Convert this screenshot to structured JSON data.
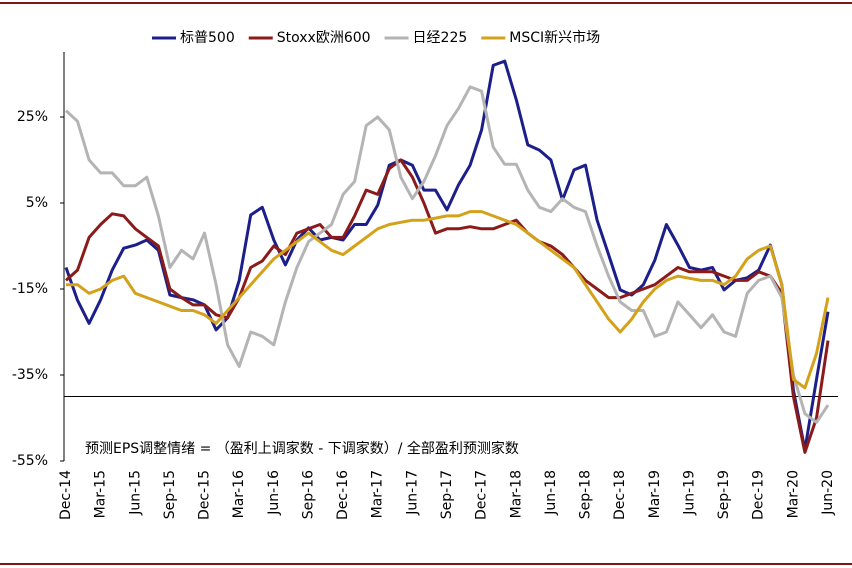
{
  "chart_data": {
    "type": "line",
    "categories": [
      "Dec-14",
      null,
      null,
      "Mar-15",
      null,
      null,
      "Jun-15",
      null,
      null,
      "Sep-15",
      null,
      null,
      "Dec-15",
      null,
      null,
      "Mar-16",
      null,
      null,
      "Jun-16",
      null,
      null,
      "Sep-16",
      null,
      null,
      "Dec-16",
      null,
      null,
      "Mar-17",
      null,
      null,
      "Jun-17",
      null,
      null,
      "Sep-17",
      null,
      null,
      "Dec-17",
      null,
      null,
      "Mar-18",
      null,
      null,
      "Jun-18",
      null,
      null,
      "Sep-18",
      null,
      null,
      "Dec-18",
      null,
      null,
      "Mar-19",
      null,
      null,
      "Jun-19",
      null,
      null,
      "Sep-19",
      null,
      null,
      "Dec-19",
      null,
      null,
      "Mar-20",
      null,
      null,
      "Jun-20"
    ],
    "series": [
      {
        "name": "标普500",
        "color": "#1c1f8a",
        "values": [
          -10,
          -17.6,
          -23,
          -17.5,
          -10.6,
          -5.5,
          -4.8,
          -3.6,
          -6,
          -16.4,
          -17,
          -17.5,
          -18.7,
          -24.5,
          -21.7,
          -13,
          2.2,
          4,
          -3.6,
          -9.4,
          -3.6,
          -0.8,
          -3.6,
          -3,
          -3.6,
          0,
          0,
          4.5,
          13.8,
          15,
          13.8,
          8,
          8,
          3.4,
          9.2,
          13.8,
          22,
          37,
          38,
          29,
          18.5,
          17.3,
          15,
          5.7,
          12.7,
          13.8,
          1,
          -7,
          -15.2,
          -16.4,
          -14,
          -8.3,
          0,
          -4.8,
          -10,
          -10.6,
          -10,
          -15.2,
          -13,
          -12.4,
          -10.6,
          -4.8,
          -14,
          -38.5,
          -52.4,
          -36,
          -20.3
        ]
      },
      {
        "name": "Stoxx欧洲600",
        "color": "#8b1a1a",
        "values": [
          -13,
          -10.6,
          -3,
          0,
          2.5,
          2,
          -1,
          -3,
          -5,
          -15,
          -17,
          -18.7,
          -18.7,
          -21,
          -21.7,
          -17,
          -10,
          -8.5,
          -5,
          -7,
          -2,
          -1,
          0,
          -3,
          -3,
          2,
          8,
          7,
          13,
          15,
          11,
          5,
          -2,
          -1,
          -1,
          -0.5,
          -1,
          -1,
          0,
          1,
          -2,
          -4,
          -5,
          -7,
          -10,
          -13,
          -15,
          -17,
          -17,
          -16,
          -15,
          -14,
          -12,
          -10,
          -11,
          -11,
          -11,
          -12,
          -13,
          -13,
          -11,
          -12,
          -16,
          -40,
          -53,
          -45,
          -27
        ]
      },
      {
        "name": "日经225",
        "color": "#b4b4b4",
        "values": [
          26.5,
          24,
          15,
          12,
          12,
          9,
          9,
          11,
          2,
          -10,
          -6,
          -8,
          -2,
          -14,
          -28,
          -33,
          -25,
          -26,
          -28,
          -18,
          -10,
          -4,
          -2,
          0,
          7,
          10,
          23,
          25,
          22,
          11,
          6,
          10,
          16,
          23,
          27,
          32,
          31,
          18,
          14,
          14,
          8,
          4,
          3,
          6,
          4,
          3,
          -5,
          -12,
          -18,
          -20,
          -20,
          -26,
          -25,
          -18,
          -21,
          -24,
          -21,
          -25,
          -26,
          -16,
          -13,
          -12,
          -17,
          -35,
          -44,
          -46,
          -42
        ]
      },
      {
        "name": "MSCI新兴市场",
        "color": "#d4a21a",
        "values": [
          -14,
          -14,
          -16,
          -15,
          -13,
          -12,
          -16,
          -17,
          -18,
          -19,
          -20,
          -20,
          -21,
          -23,
          -20,
          -17,
          -14,
          -11,
          -8,
          -6,
          -4,
          -2,
          -4,
          -6,
          -7,
          -5,
          -3,
          -1,
          0,
          0.5,
          1,
          1,
          1.5,
          2,
          2,
          3,
          3,
          2,
          1,
          0,
          -2,
          -4,
          -6,
          -8,
          -10,
          -14,
          -18,
          -22,
          -25,
          -22,
          -18,
          -15,
          -13,
          -12,
          -12.5,
          -13,
          -13,
          -14,
          -12,
          -8,
          -6,
          -5,
          -14,
          -36,
          -38,
          -30,
          -17
        ]
      }
    ],
    "ylim": [
      -55,
      40
    ],
    "yticks": [
      {
        "value": -55,
        "label": "-55%"
      },
      {
        "value": -35,
        "label": "-35%"
      },
      {
        "value": -15,
        "label": "-15%"
      },
      {
        "value": 5,
        "label": "5%"
      },
      {
        "value": 25,
        "label": "25%"
      }
    ],
    "ytick_color": "#c00000",
    "x_axis_at": -40,
    "annotation": "预测EPS调整情绪 = （盈利上调家数 - 下调家数）/ 全部盈利预测家数",
    "legend": "top"
  }
}
